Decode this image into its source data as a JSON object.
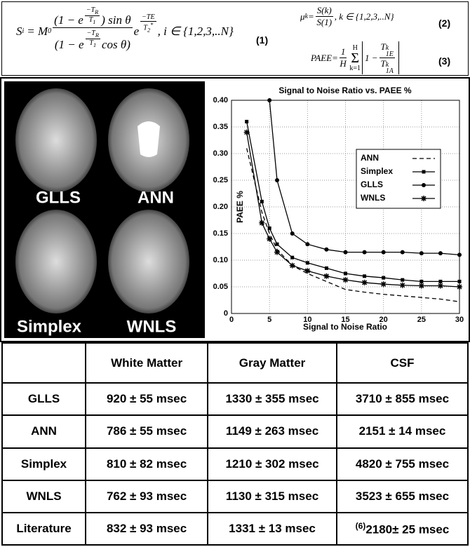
{
  "equations": [
    {
      "parts": [
        "S",
        "i",
        "= M",
        "0",
        "(1 − e",
        "−T",
        "R",
        "T",
        "1",
        ") sin θ",
        "(1 − e",
        "−T",
        "R",
        "T",
        "1",
        " cos θ)",
        "e",
        "−TE",
        "T",
        "2",
        "*",
        ",  i ∈ {1,2,3,..N}",
        "(1)"
      ]
    },
    {
      "parts": [
        "μ",
        "k",
        " = ",
        "S(k)",
        "S(1)",
        ", k ∈ {1,2,3,..N}",
        "(2)"
      ]
    },
    {
      "parts": [
        "PAEE",
        " = ",
        "1",
        "H",
        "H",
        "Σ",
        "k=1",
        "1 − ",
        "T",
        "k",
        "1E",
        "T",
        "k",
        "1A",
        "(3)"
      ]
    }
  ],
  "images": {
    "labels": [
      "GLLS",
      "ANN",
      "Simplex",
      "WNLS"
    ]
  },
  "chart_data": {
    "type": "line",
    "title": "Signal to Noise Ratio vs. PAEE %",
    "xlabel": "Signal to Noise Ratio",
    "ylabel": "PAEE %",
    "x": [
      2,
      4,
      5,
      6,
      8,
      10,
      12.5,
      15,
      17.5,
      20,
      22.5,
      25,
      27.5,
      30
    ],
    "series": [
      {
        "name": "ANN",
        "color": "#000000",
        "dash": true,
        "marker": "none",
        "values": [
          0.31,
          0.19,
          0.15,
          0.12,
          0.09,
          0.075,
          0.06,
          0.045,
          0.04,
          0.036,
          0.033,
          0.03,
          0.027,
          0.022
        ]
      },
      {
        "name": "Simplex",
        "color": "#000000",
        "dash": false,
        "marker": "square",
        "values": [
          0.36,
          0.21,
          0.16,
          0.13,
          0.105,
          0.095,
          0.085,
          0.075,
          0.07,
          0.067,
          0.063,
          0.06,
          0.06,
          0.06
        ]
      },
      {
        "name": "GLLS",
        "color": "#000000",
        "dash": false,
        "marker": "circle",
        "values": [
          null,
          null,
          0.4,
          0.25,
          0.15,
          0.13,
          0.12,
          0.115,
          0.115,
          0.115,
          0.115,
          0.113,
          0.113,
          0.11
        ]
      },
      {
        "name": "WNLS",
        "color": "#000000",
        "dash": false,
        "marker": "star",
        "values": [
          0.34,
          0.17,
          0.14,
          0.115,
          0.09,
          0.08,
          0.07,
          0.063,
          0.058,
          0.055,
          0.053,
          0.052,
          0.052,
          0.05
        ]
      }
    ],
    "xlim": [
      0,
      30
    ],
    "xticks": [
      0,
      5,
      10,
      15,
      20,
      25,
      30
    ],
    "ylim": [
      0,
      0.4
    ],
    "yticks": [
      0,
      0.05,
      {
        "value": 0.1,
        "label": "0.10"
      },
      0.15,
      {
        "value": 0.2,
        "label": "0.20"
      },
      0.25,
      {
        "value": 0.3,
        "label": "0.30"
      },
      0.35,
      {
        "value": 0.4,
        "label": "0.40"
      }
    ],
    "grid": true,
    "legend": "right"
  },
  "table": {
    "header": [
      "White Matter",
      "Gray Matter",
      "CSF"
    ],
    "rows": [
      {
        "label": "GLLS",
        "cells": [
          "920 ± 55 msec",
          "1330 ± 355 msec",
          "3710 ± 855 msec"
        ]
      },
      {
        "label": "ANN",
        "cells": [
          "786 ± 55 msec",
          "1149 ± 263 msec",
          "2151 ± 14 msec"
        ]
      },
      {
        "label": "Simplex",
        "cells": [
          "810 ± 82 msec",
          "1210 ± 302 msec",
          "4820 ± 755 msec"
        ]
      },
      {
        "label": "WNLS",
        "cells": [
          "762 ± 93 msec",
          "1130 ± 315 msec",
          "3523 ± 655 msec"
        ]
      },
      {
        "label": "Literature",
        "cite": "(6)",
        "cells": [
          "832 ± 93 msec",
          "1331 ± 13 msec",
          "2180± 25 msec"
        ]
      }
    ]
  }
}
